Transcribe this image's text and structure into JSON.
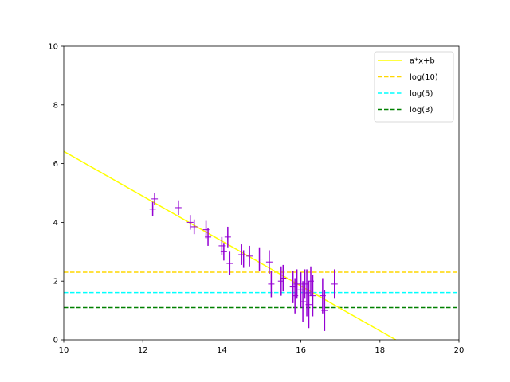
{
  "chart_data": {
    "type": "scatter",
    "title": "",
    "xlabel": "",
    "ylabel": "",
    "xlim": [
      10,
      20
    ],
    "ylim": [
      0,
      10
    ],
    "xticks": [
      "10",
      "12",
      "14",
      "16",
      "18",
      "20"
    ],
    "yticks": [
      "0",
      "2",
      "4",
      "6",
      "8",
      "10"
    ],
    "grid": false,
    "legend_position": "top-right",
    "fit_line": {
      "label": "a*x+b",
      "color": "#ffff00",
      "points": [
        [
          10,
          6.42
        ],
        [
          18.4,
          0.0
        ]
      ]
    },
    "hlines": [
      {
        "label": "log(10)",
        "value": 2.3026,
        "color": "#ffd700",
        "style": "dashed"
      },
      {
        "label": "log(5)",
        "value": 1.6094,
        "color": "#00ffff",
        "style": "dashed"
      },
      {
        "label": "log(3)",
        "value": 1.0986,
        "color": "#008000",
        "style": "dashed"
      }
    ],
    "series": [
      {
        "color": "#9400d3",
        "marker": "+",
        "points": [
          {
            "x": 12.25,
            "y": 4.45,
            "err": 0.25
          },
          {
            "x": 12.3,
            "y": 4.8,
            "err": 0.2
          },
          {
            "x": 12.9,
            "y": 4.5,
            "err": 0.25
          },
          {
            "x": 13.2,
            "y": 4.0,
            "err": 0.25
          },
          {
            "x": 13.3,
            "y": 3.85,
            "err": 0.25
          },
          {
            "x": 13.6,
            "y": 3.75,
            "err": 0.3
          },
          {
            "x": 13.65,
            "y": 3.5,
            "err": 0.3
          },
          {
            "x": 14.0,
            "y": 3.2,
            "err": 0.3
          },
          {
            "x": 14.05,
            "y": 3.0,
            "err": 0.3
          },
          {
            "x": 14.15,
            "y": 3.5,
            "err": 0.35
          },
          {
            "x": 14.2,
            "y": 2.6,
            "err": 0.4
          },
          {
            "x": 14.5,
            "y": 2.9,
            "err": 0.35
          },
          {
            "x": 14.55,
            "y": 2.75,
            "err": 0.3
          },
          {
            "x": 14.7,
            "y": 2.85,
            "err": 0.35
          },
          {
            "x": 14.95,
            "y": 2.75,
            "err": 0.4
          },
          {
            "x": 15.2,
            "y": 2.65,
            "err": 0.4
          },
          {
            "x": 15.25,
            "y": 1.9,
            "err": 0.45
          },
          {
            "x": 15.5,
            "y": 2.0,
            "err": 0.5
          },
          {
            "x": 15.55,
            "y": 2.1,
            "err": 0.45
          },
          {
            "x": 15.8,
            "y": 1.8,
            "err": 0.55
          },
          {
            "x": 15.85,
            "y": 1.5,
            "err": 0.6
          },
          {
            "x": 15.9,
            "y": 1.9,
            "err": 0.5
          },
          {
            "x": 16.0,
            "y": 1.7,
            "err": 0.6
          },
          {
            "x": 16.05,
            "y": 1.3,
            "err": 0.7
          },
          {
            "x": 16.1,
            "y": 1.9,
            "err": 0.5
          },
          {
            "x": 16.15,
            "y": 1.6,
            "err": 0.8
          },
          {
            "x": 16.2,
            "y": 1.2,
            "err": 0.8
          },
          {
            "x": 16.25,
            "y": 2.0,
            "err": 0.5
          },
          {
            "x": 16.3,
            "y": 1.5,
            "err": 0.7
          },
          {
            "x": 16.55,
            "y": 1.5,
            "err": 0.6
          },
          {
            "x": 16.6,
            "y": 1.0,
            "err": 0.7
          },
          {
            "x": 16.85,
            "y": 1.9,
            "err": 0.5
          }
        ]
      }
    ]
  }
}
